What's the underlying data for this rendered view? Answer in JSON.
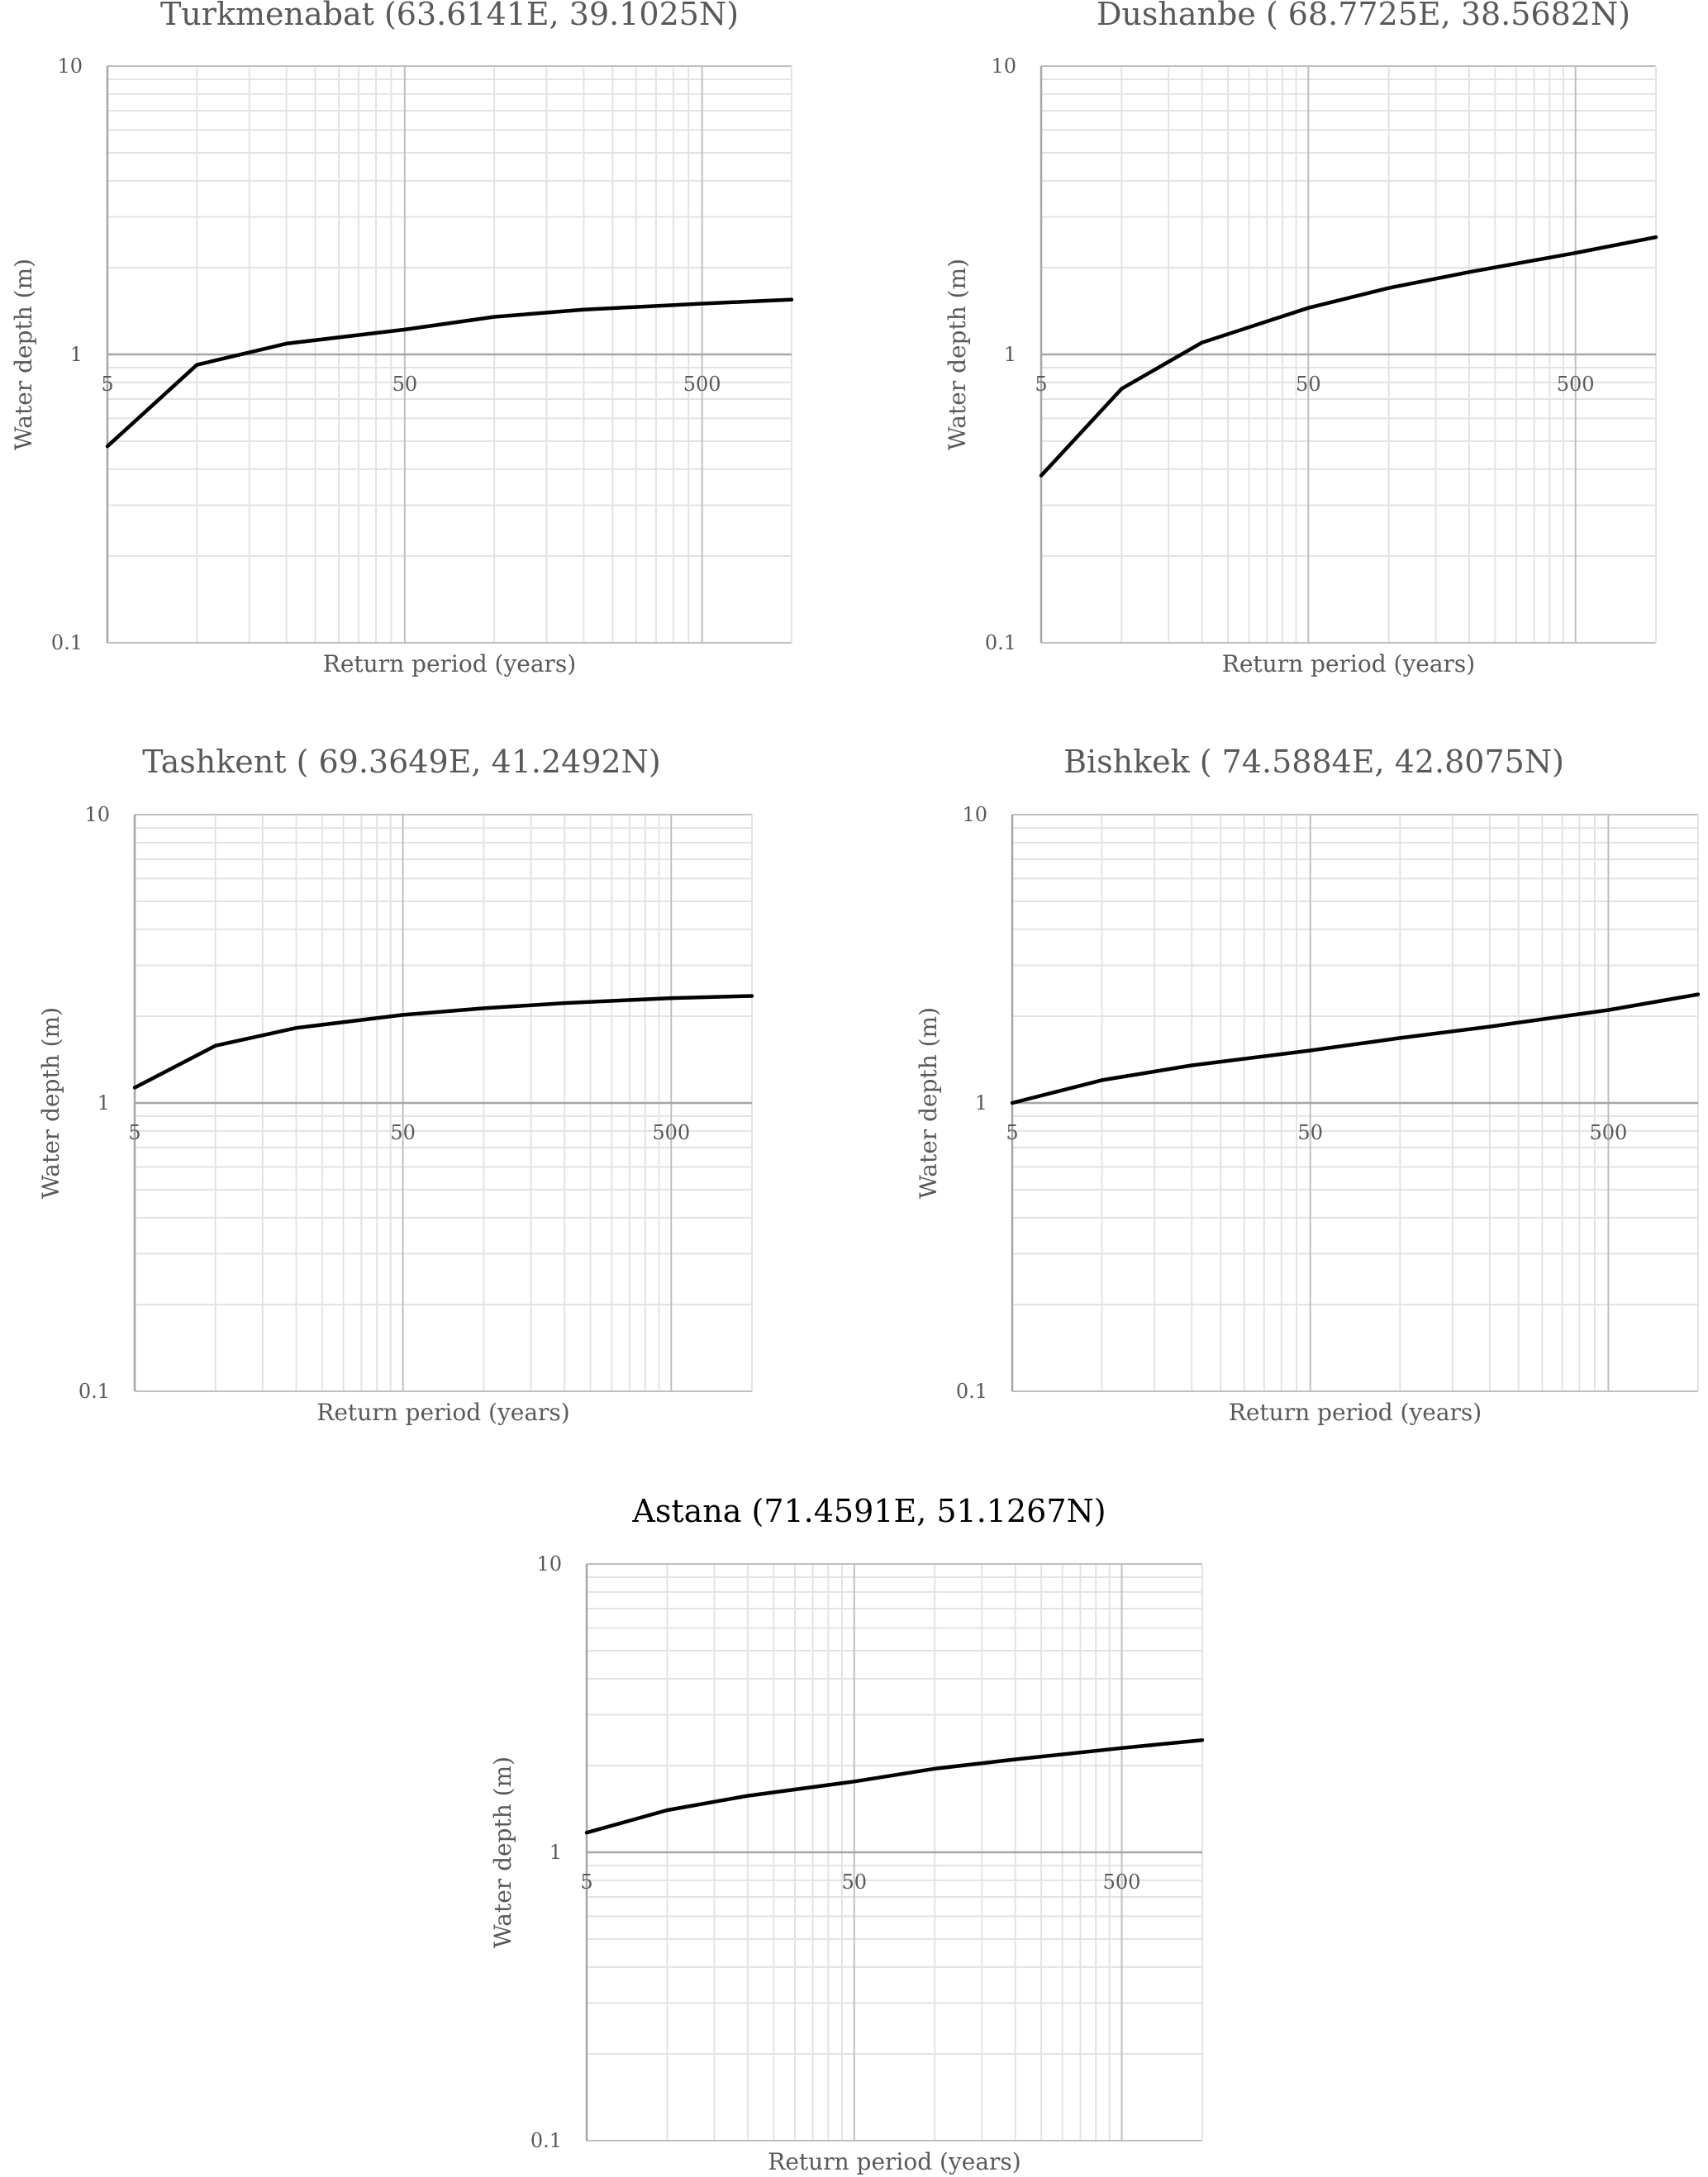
{
  "figure": {
    "chart_data": [
      {
        "type": "line",
        "title": "Turkmenabat (63.6141E, 39.1025N)",
        "xlabel": "Return period (years)",
        "ylabel": "Water depth (m)",
        "xscale": "log",
        "yscale": "log",
        "xlim": [
          5,
          1000
        ],
        "ylim": [
          0.1,
          10
        ],
        "xticks": [
          5,
          50,
          500
        ],
        "xtick_labels": [
          "5",
          "50",
          "500"
        ],
        "yticks": [
          0.1,
          1,
          10
        ],
        "ytick_labels": [
          "0.1",
          "1",
          "10"
        ],
        "grid": "major and minor (log)",
        "series": [
          {
            "x": [
              5,
              10,
              20,
              50,
              100,
              200,
              500,
              1000
            ],
            "y": [
              0.48,
              0.92,
              1.09,
              1.22,
              1.35,
              1.43,
              1.5,
              1.55
            ]
          }
        ]
      },
      {
        "type": "line",
        "title": "Dushanbe ( 68.7725E, 38.5682N)",
        "xlabel": "Return period (years)",
        "ylabel": "Water depth (m)",
        "xscale": "log",
        "yscale": "log",
        "xlim": [
          5,
          1000
        ],
        "ylim": [
          0.1,
          10
        ],
        "xticks": [
          5,
          50,
          500
        ],
        "xtick_labels": [
          "5",
          "50",
          "500"
        ],
        "yticks": [
          0.1,
          1,
          10
        ],
        "ytick_labels": [
          "0.1",
          "1",
          "10"
        ],
        "grid": "major and minor (log)",
        "series": [
          {
            "x": [
              5,
              10,
              20,
              50,
              100,
              200,
              500,
              1000
            ],
            "y": [
              0.38,
              0.76,
              1.1,
              1.45,
              1.7,
              1.93,
              2.25,
              2.55
            ]
          }
        ]
      },
      {
        "type": "line",
        "title": "Tashkent ( 69.3649E, 41.2492N)",
        "xlabel": "Return period (years)",
        "ylabel": "Water depth (m)",
        "xscale": "log",
        "yscale": "log",
        "xlim": [
          5,
          1000
        ],
        "ylim": [
          0.1,
          10
        ],
        "xticks": [
          5,
          50,
          500
        ],
        "xtick_labels": [
          "5",
          "50",
          "500"
        ],
        "yticks": [
          0.1,
          1,
          10
        ],
        "ytick_labels": [
          "0.1",
          "1",
          "10"
        ],
        "grid": "major and minor (log)",
        "series": [
          {
            "x": [
              5,
              10,
              20,
              50,
              100,
              200,
              500,
              1000
            ],
            "y": [
              1.13,
              1.58,
              1.82,
              2.02,
              2.13,
              2.22,
              2.31,
              2.35
            ]
          }
        ]
      },
      {
        "type": "line",
        "title": "Bishkek ( 74.5884E, 42.8075N)",
        "xlabel": "Return period (years)",
        "ylabel": "Water depth (m)",
        "xscale": "log",
        "yscale": "log",
        "xlim": [
          5,
          1000
        ],
        "ylim": [
          0.1,
          10
        ],
        "xticks": [
          5,
          50,
          500
        ],
        "xtick_labels": [
          "5",
          "50",
          "500"
        ],
        "yticks": [
          0.1,
          1,
          10
        ],
        "ytick_labels": [
          "0.1",
          "1",
          "10"
        ],
        "grid": "major and minor (log)",
        "series": [
          {
            "x": [
              5,
              10,
              20,
              50,
              100,
              200,
              500,
              1000
            ],
            "y": [
              1.0,
              1.2,
              1.35,
              1.52,
              1.68,
              1.84,
              2.1,
              2.38
            ]
          }
        ]
      },
      {
        "type": "line",
        "title": "Astana    (71.4591E, 51.1267N)",
        "xlabel": "Return period (years)",
        "ylabel": "Water depth (m)",
        "xscale": "log",
        "yscale": "log",
        "xlim": [
          5,
          1000
        ],
        "ylim": [
          0.1,
          10
        ],
        "xticks": [
          5,
          50,
          500
        ],
        "xtick_labels": [
          "5",
          "50",
          "500"
        ],
        "yticks": [
          0.1,
          1,
          10
        ],
        "ytick_labels": [
          "0.1",
          "1",
          "10"
        ],
        "grid": "major and minor (log)",
        "series": [
          {
            "x": [
              5,
              10,
              20,
              50,
              100,
              200,
              500,
              1000
            ],
            "y": [
              1.17,
              1.4,
              1.57,
              1.76,
              1.95,
              2.1,
              2.3,
              2.45
            ]
          }
        ]
      }
    ],
    "colors": {
      "line": "#000000",
      "grid_major": "#bfbfbf",
      "grid_minor": "#e3e3e3",
      "axis": "#a6a6a6",
      "text": "#595959",
      "title_astana": "#000000"
    }
  }
}
